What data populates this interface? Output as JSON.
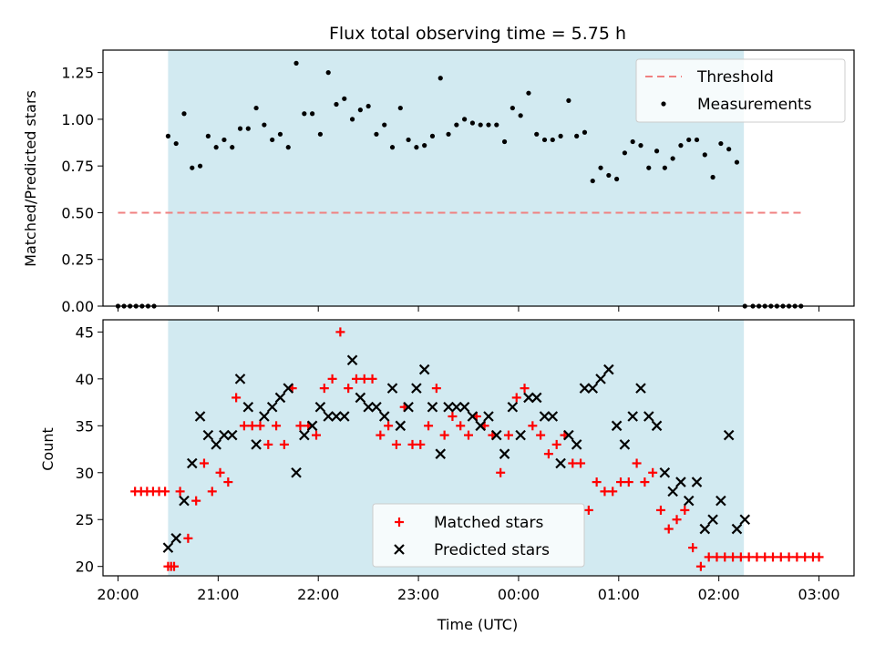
{
  "title": "Flux total observing time = 5.75 h",
  "chart_data": [
    {
      "type": "scatter",
      "panel": "top",
      "ylabel": "Matched/Predicted stars",
      "xlabel": "",
      "ylim": [
        0,
        1.37
      ],
      "yticks": [
        0,
        0.25,
        0.5,
        0.75,
        1.0,
        1.25
      ],
      "ytick_labels": [
        "0.00",
        "0.25",
        "0.50",
        "0.75",
        "1.00",
        "1.25"
      ],
      "xlim": [
        -0.15,
        7.35
      ],
      "xticks": [
        0,
        1,
        2,
        3,
        4,
        5,
        6,
        7
      ],
      "show_xtick_labels": false,
      "grid": false,
      "legend_position": "top-right",
      "shaded_span": [
        0.5,
        6.25
      ],
      "shade_color": "#add8e6",
      "threshold": {
        "name": "Threshold",
        "value": 0.5,
        "x_range": [
          0.0,
          6.85
        ],
        "color": "#f08080"
      },
      "series": [
        {
          "name": "Measurements",
          "color": "#000000",
          "marker": "dot",
          "x": [
            0.0,
            0.06,
            0.12,
            0.18,
            0.24,
            0.3,
            0.36,
            0.5,
            0.58,
            0.66,
            0.74,
            0.82,
            0.9,
            0.98,
            1.06,
            1.14,
            1.22,
            1.3,
            1.38,
            1.46,
            1.54,
            1.62,
            1.7,
            1.78,
            1.86,
            1.94,
            2.02,
            2.1,
            2.18,
            2.26,
            2.34,
            2.42,
            2.5,
            2.58,
            2.66,
            2.74,
            2.82,
            2.9,
            2.98,
            3.06,
            3.14,
            3.22,
            3.3,
            3.38,
            3.46,
            3.54,
            3.62,
            3.7,
            3.78,
            3.86,
            3.94,
            4.02,
            4.1,
            4.18,
            4.26,
            4.34,
            4.42,
            4.5,
            4.58,
            4.66,
            4.74,
            4.82,
            4.9,
            4.98,
            5.06,
            5.14,
            5.22,
            5.3,
            5.38,
            5.46,
            5.54,
            5.62,
            5.7,
            5.78,
            5.86,
            5.94,
            6.02,
            6.1,
            6.18,
            6.26,
            6.34,
            6.4,
            6.46,
            6.52,
            6.58,
            6.64,
            6.7,
            6.76,
            6.82
          ],
          "y": [
            0.0,
            0.0,
            0.0,
            0.0,
            0.0,
            0.0,
            0.0,
            0.91,
            0.87,
            1.03,
            0.74,
            0.75,
            0.91,
            0.85,
            0.89,
            0.85,
            0.95,
            0.95,
            1.06,
            0.97,
            0.89,
            0.92,
            0.85,
            1.3,
            1.03,
            1.03,
            0.92,
            1.25,
            1.08,
            1.11,
            1.0,
            1.05,
            1.07,
            0.92,
            0.97,
            0.85,
            1.06,
            0.89,
            0.85,
            0.86,
            0.91,
            1.22,
            0.92,
            0.97,
            1.0,
            0.98,
            0.97,
            0.97,
            0.97,
            0.88,
            1.06,
            1.02,
            1.14,
            0.92,
            0.89,
            0.89,
            0.91,
            1.1,
            0.91,
            0.93,
            0.67,
            0.74,
            0.7,
            0.68,
            0.82,
            0.88,
            0.86,
            0.74,
            0.83,
            0.74,
            0.79,
            0.86,
            0.89,
            0.89,
            0.81,
            0.69,
            0.87,
            0.84,
            0.77,
            0.0,
            0.0,
            0.0,
            0.0,
            0.0,
            0.0,
            0.0,
            0.0,
            0.0,
            0.0
          ]
        }
      ]
    },
    {
      "type": "scatter",
      "panel": "bottom",
      "ylabel": "Count",
      "xlabel": "Time (UTC)",
      "ylim": [
        19,
        46.3
      ],
      "yticks": [
        20,
        25,
        30,
        35,
        40,
        45
      ],
      "ytick_labels": [
        "20",
        "25",
        "30",
        "35",
        "40",
        "45"
      ],
      "xlim": [
        -0.15,
        7.35
      ],
      "xticks": [
        0,
        1,
        2,
        3,
        4,
        5,
        6,
        7
      ],
      "xtick_labels": [
        "20:00",
        "21:00",
        "22:00",
        "23:00",
        "00:00",
        "01:00",
        "02:00",
        "03:00"
      ],
      "grid": false,
      "legend_position": "bottom-center",
      "shaded_span": [
        0.5,
        6.25
      ],
      "shade_color": "#add8e6",
      "series": [
        {
          "name": "Matched stars",
          "color": "#ff0000",
          "marker": "plus",
          "x": [
            0.17,
            0.23,
            0.29,
            0.35,
            0.41,
            0.47,
            0.53,
            0.5,
            0.56,
            0.62,
            0.7,
            0.78,
            0.86,
            0.94,
            1.02,
            1.1,
            1.18,
            1.26,
            1.34,
            1.42,
            1.5,
            1.58,
            1.66,
            1.74,
            1.82,
            1.9,
            1.98,
            2.06,
            2.14,
            2.22,
            2.3,
            2.38,
            2.46,
            2.54,
            2.62,
            2.7,
            2.78,
            2.86,
            2.94,
            3.02,
            3.1,
            3.18,
            3.26,
            3.34,
            3.42,
            3.5,
            3.58,
            3.66,
            3.74,
            3.82,
            3.9,
            3.98,
            4.06,
            4.14,
            4.22,
            4.3,
            4.38,
            4.46,
            4.54,
            4.62,
            4.7,
            4.78,
            4.86,
            4.94,
            5.02,
            5.1,
            5.18,
            5.26,
            5.34,
            5.42,
            5.5,
            5.58,
            5.66,
            5.74,
            5.82,
            5.9,
            5.98,
            6.06,
            6.14,
            6.22,
            6.3,
            6.38,
            6.46,
            6.54,
            6.62,
            6.7,
            6.78,
            6.86,
            6.94,
            7.0
          ],
          "y": [
            28,
            28,
            28,
            28,
            28,
            28,
            20,
            20,
            20,
            28,
            23,
            27,
            31,
            28,
            30,
            29,
            38,
            35,
            35,
            35,
            33,
            35,
            33,
            39,
            35,
            35,
            34,
            39,
            40,
            45,
            39,
            40,
            40,
            40,
            34,
            35,
            33,
            37,
            33,
            33,
            35,
            39,
            34,
            36,
            35,
            34,
            36,
            35,
            34,
            30,
            34,
            38,
            39,
            35,
            34,
            32,
            33,
            34,
            31,
            31,
            26,
            29,
            28,
            28,
            29,
            29,
            31,
            29,
            30,
            26,
            24,
            25,
            26,
            22,
            20,
            21,
            21,
            21,
            21,
            21,
            21,
            21,
            21,
            21,
            21,
            21,
            21,
            21,
            21,
            21
          ]
        },
        {
          "name": "Predicted stars",
          "color": "#000000",
          "marker": "x",
          "x": [
            0.5,
            0.58,
            0.66,
            0.74,
            0.82,
            0.9,
            0.98,
            1.06,
            1.14,
            1.22,
            1.3,
            1.38,
            1.46,
            1.54,
            1.62,
            1.7,
            1.78,
            1.86,
            1.94,
            2.02,
            2.1,
            2.18,
            2.26,
            2.34,
            2.42,
            2.5,
            2.58,
            2.66,
            2.74,
            2.82,
            2.9,
            2.98,
            3.06,
            3.14,
            3.22,
            3.3,
            3.38,
            3.46,
            3.54,
            3.62,
            3.7,
            3.78,
            3.86,
            3.94,
            4.02,
            4.1,
            4.18,
            4.26,
            4.34,
            4.42,
            4.5,
            4.58,
            4.66,
            4.74,
            4.82,
            4.9,
            4.98,
            5.06,
            5.14,
            5.22,
            5.3,
            5.38,
            5.46,
            5.54,
            5.62,
            5.7,
            5.78,
            5.86,
            5.94,
            6.02,
            6.1,
            6.18,
            6.26
          ],
          "y": [
            22,
            23,
            27,
            31,
            36,
            34,
            33,
            34,
            34,
            40,
            37,
            33,
            36,
            37,
            38,
            39,
            30,
            34,
            35,
            37,
            36,
            36,
            36,
            42,
            38,
            37,
            37,
            36,
            39,
            35,
            37,
            39,
            41,
            37,
            32,
            37,
            37,
            37,
            36,
            35,
            36,
            34,
            32,
            37,
            34,
            38,
            38,
            36,
            36,
            31,
            34,
            33,
            39,
            39,
            40,
            41,
            35,
            33,
            36,
            39,
            36,
            35,
            30,
            28,
            29,
            27,
            29,
            24,
            25,
            27,
            34,
            24,
            25
          ]
        }
      ]
    }
  ]
}
